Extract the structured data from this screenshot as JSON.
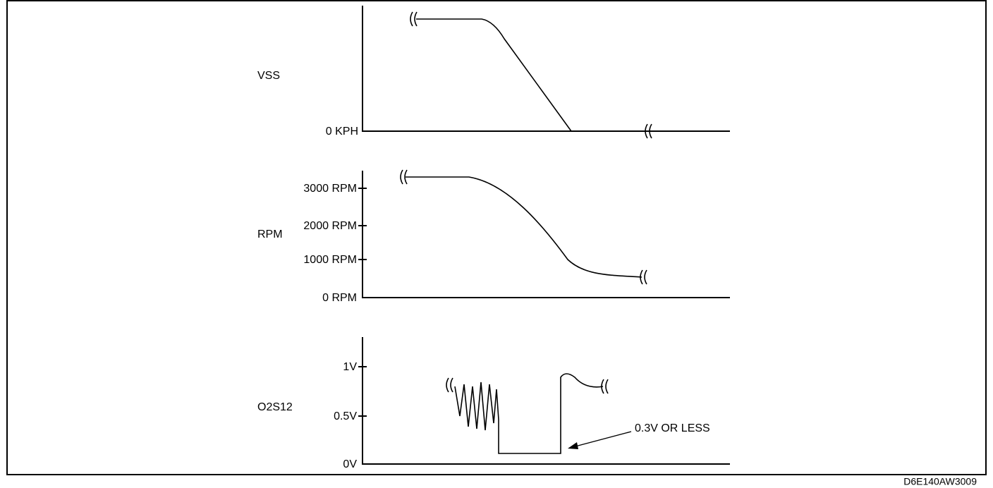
{
  "panels": [
    {
      "label": "VSS",
      "ticks": [
        "0 KPH"
      ]
    },
    {
      "label": "RPM",
      "ticks": [
        "3000 RPM",
        "2000 RPM",
        "1000 RPM",
        "0 RPM"
      ]
    },
    {
      "label": "O2S12",
      "ticks": [
        "1V",
        "0.5V",
        "0V"
      ]
    }
  ],
  "annotation": "0.3V OR LESS",
  "figure_id": "D6E140AW3009"
}
